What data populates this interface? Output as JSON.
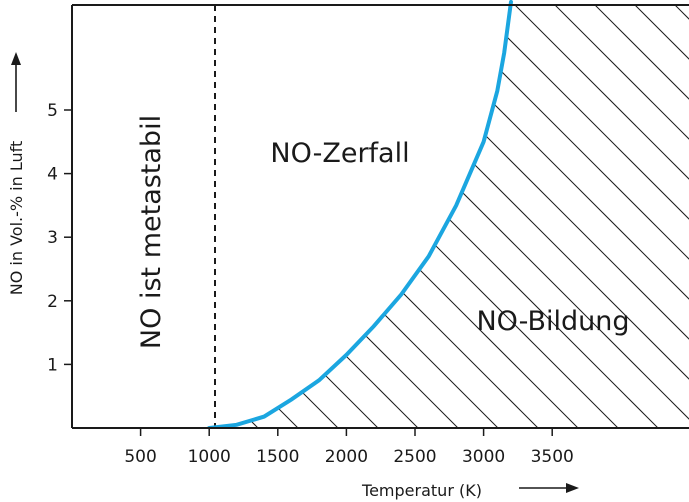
{
  "chart_data": {
    "type": "line",
    "xlabel": "Temperatur (K)",
    "ylabel": "NO in Vol.-% in Luft",
    "xlim": [
      0,
      4000
    ],
    "ylim": [
      0,
      6.8
    ],
    "x_ticks": [
      500,
      1000,
      1500,
      2000,
      2500,
      3000,
      3500
    ],
    "y_ticks": [
      1,
      2,
      3,
      4,
      5
    ],
    "series": [
      {
        "color": "#1ba6e0",
        "points": [
          [
            1000,
            0.0
          ],
          [
            1200,
            0.05
          ],
          [
            1400,
            0.18
          ],
          [
            1600,
            0.45
          ],
          [
            1800,
            0.75
          ],
          [
            2000,
            1.15
          ],
          [
            2200,
            1.6
          ],
          [
            2400,
            2.1
          ],
          [
            2600,
            2.7
          ],
          [
            2800,
            3.5
          ],
          [
            3000,
            4.5
          ],
          [
            3100,
            5.3
          ],
          [
            3150,
            5.9
          ],
          [
            3200,
            6.7
          ]
        ]
      }
    ],
    "metastable_boundary_x": 700,
    "annotations": {
      "metastable": "NO ist metastabil",
      "decomposition": "NO-Zerfall",
      "formation": "NO-Bildung"
    },
    "hatch_region": "below-curve",
    "grid": false
  }
}
